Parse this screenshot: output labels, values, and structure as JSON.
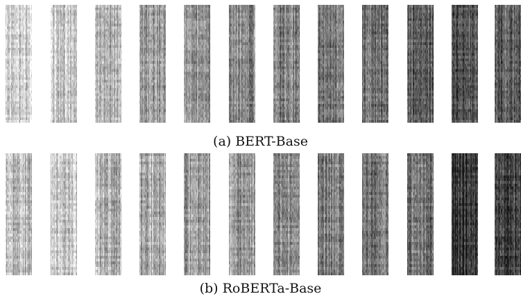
{
  "figure": {
    "panels": [
      {
        "caption": "(a) BERT-Base",
        "strip_darkness": [
          0.18,
          0.22,
          0.34,
          0.42,
          0.46,
          0.5,
          0.55,
          0.58,
          0.62,
          0.72,
          0.74,
          0.7
        ]
      },
      {
        "caption": "(b) RoBERTa-Base",
        "strip_darkness": [
          0.3,
          0.26,
          0.32,
          0.38,
          0.42,
          0.45,
          0.5,
          0.55,
          0.58,
          0.62,
          0.85,
          0.8
        ]
      }
    ]
  }
}
